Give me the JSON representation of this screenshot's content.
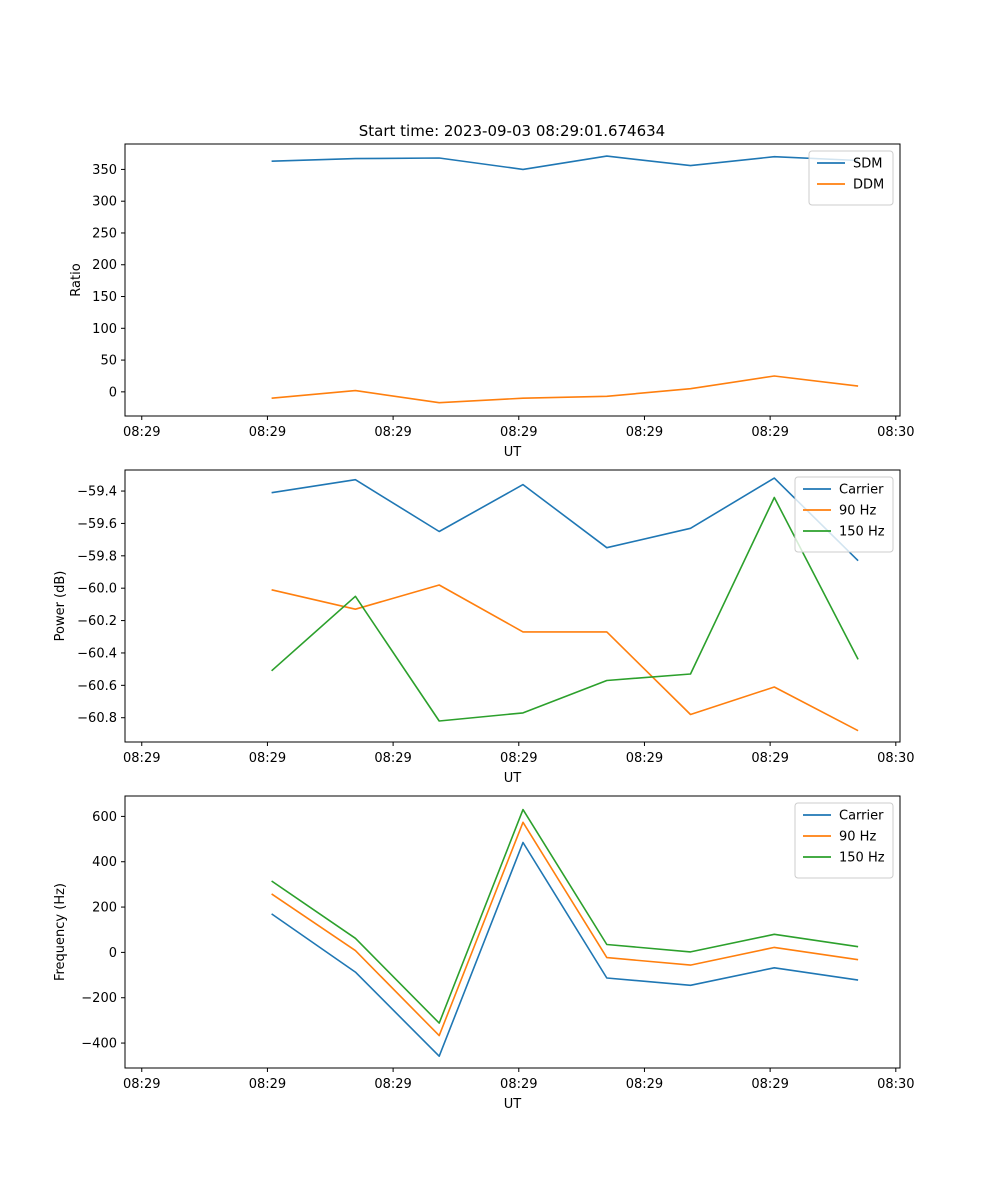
{
  "figure_title": "Start time: 2023-09-03 08:29:01.674634",
  "colors": {
    "blue": "#1f77b4",
    "orange": "#ff7f0e",
    "green": "#2ca02c"
  },
  "chart_data": [
    {
      "type": "line",
      "title": "Start time: 2023-09-03 08:29:01.674634",
      "xlabel": "UT",
      "ylabel": "Ratio",
      "x": [
        1.0,
        2.0,
        3.0,
        4.0,
        5.0,
        6.0,
        7.0,
        8.0
      ],
      "xlim": [
        -0.75,
        8.5
      ],
      "xticks": [
        -0.55,
        0.95,
        2.45,
        3.95,
        5.45,
        6.95,
        8.45
      ],
      "xtick_labels": [
        "08:29",
        "08:29",
        "08:29",
        "08:29",
        "08:29",
        "08:29",
        "08:30"
      ],
      "ylim": [
        -38,
        390
      ],
      "yticks": [
        0,
        50,
        100,
        150,
        200,
        250,
        300,
        350
      ],
      "ytick_labels": [
        "0",
        "50",
        "100",
        "150",
        "200",
        "250",
        "300",
        "350"
      ],
      "series": [
        {
          "name": "SDM",
          "color": "#1f77b4",
          "values": [
            363,
            367,
            368,
            350,
            371,
            356,
            370,
            364
          ]
        },
        {
          "name": "DDM",
          "color": "#ff7f0e",
          "values": [
            -10,
            2,
            -17,
            -10,
            -7,
            5,
            25,
            9
          ]
        }
      ],
      "legend": "upper right"
    },
    {
      "type": "line",
      "title": "",
      "xlabel": "UT",
      "ylabel": "Power (dB)",
      "x": [
        1.0,
        2.0,
        3.0,
        4.0,
        5.0,
        6.0,
        7.0,
        8.0
      ],
      "xlim": [
        -0.75,
        8.5
      ],
      "xticks": [
        -0.55,
        0.95,
        2.45,
        3.95,
        5.45,
        6.95,
        8.45
      ],
      "xtick_labels": [
        "08:29",
        "08:29",
        "08:29",
        "08:29",
        "08:29",
        "08:29",
        "08:30"
      ],
      "ylim": [
        -60.95,
        -59.27
      ],
      "yticks": [
        -60.8,
        -60.6,
        -60.4,
        -60.2,
        -60.0,
        -59.8,
        -59.6,
        -59.4
      ],
      "ytick_labels": [
        "−60.8",
        "−60.6",
        "−60.4",
        "−60.2",
        "−60.0",
        "−59.8",
        "−59.6",
        "−59.4"
      ],
      "series": [
        {
          "name": "Carrier",
          "color": "#1f77b4",
          "values": [
            -59.41,
            -59.33,
            -59.65,
            -59.36,
            -59.75,
            -59.63,
            -59.32,
            -59.83
          ]
        },
        {
          "name": "90 Hz",
          "color": "#ff7f0e",
          "values": [
            -60.01,
            -60.13,
            -59.98,
            -60.27,
            -60.27,
            -60.78,
            -60.61,
            -60.88
          ]
        },
        {
          "name": "150 Hz",
          "color": "#2ca02c",
          "values": [
            -60.51,
            -60.05,
            -60.82,
            -60.77,
            -60.57,
            -60.53,
            -59.44,
            -60.44
          ]
        }
      ],
      "legend": "upper right"
    },
    {
      "type": "line",
      "title": "",
      "xlabel": "UT",
      "ylabel": "Frequency (Hz)",
      "x": [
        1.0,
        2.0,
        3.0,
        4.0,
        5.0,
        6.0,
        7.0,
        8.0
      ],
      "xlim": [
        -0.75,
        8.5
      ],
      "xticks": [
        -0.55,
        0.95,
        2.45,
        3.95,
        5.45,
        6.95,
        8.45
      ],
      "xtick_labels": [
        "08:29",
        "08:29",
        "08:29",
        "08:29",
        "08:29",
        "08:29",
        "08:30"
      ],
      "ylim": [
        -510,
        690
      ],
      "yticks": [
        -400,
        -200,
        0,
        200,
        400,
        600
      ],
      "ytick_labels": [
        "−400",
        "−200",
        "0",
        "200",
        "400",
        "600"
      ],
      "series": [
        {
          "name": "Carrier",
          "color": "#1f77b4",
          "values": [
            170,
            -87,
            -458,
            485,
            -113,
            -145,
            -68,
            -122
          ]
        },
        {
          "name": "90 Hz",
          "color": "#ff7f0e",
          "values": [
            258,
            8,
            -367,
            574,
            -23,
            -56,
            22,
            -32
          ]
        },
        {
          "name": "150 Hz",
          "color": "#2ca02c",
          "values": [
            315,
            62,
            -312,
            630,
            35,
            2,
            80,
            25
          ]
        }
      ],
      "legend": "upper right"
    }
  ]
}
